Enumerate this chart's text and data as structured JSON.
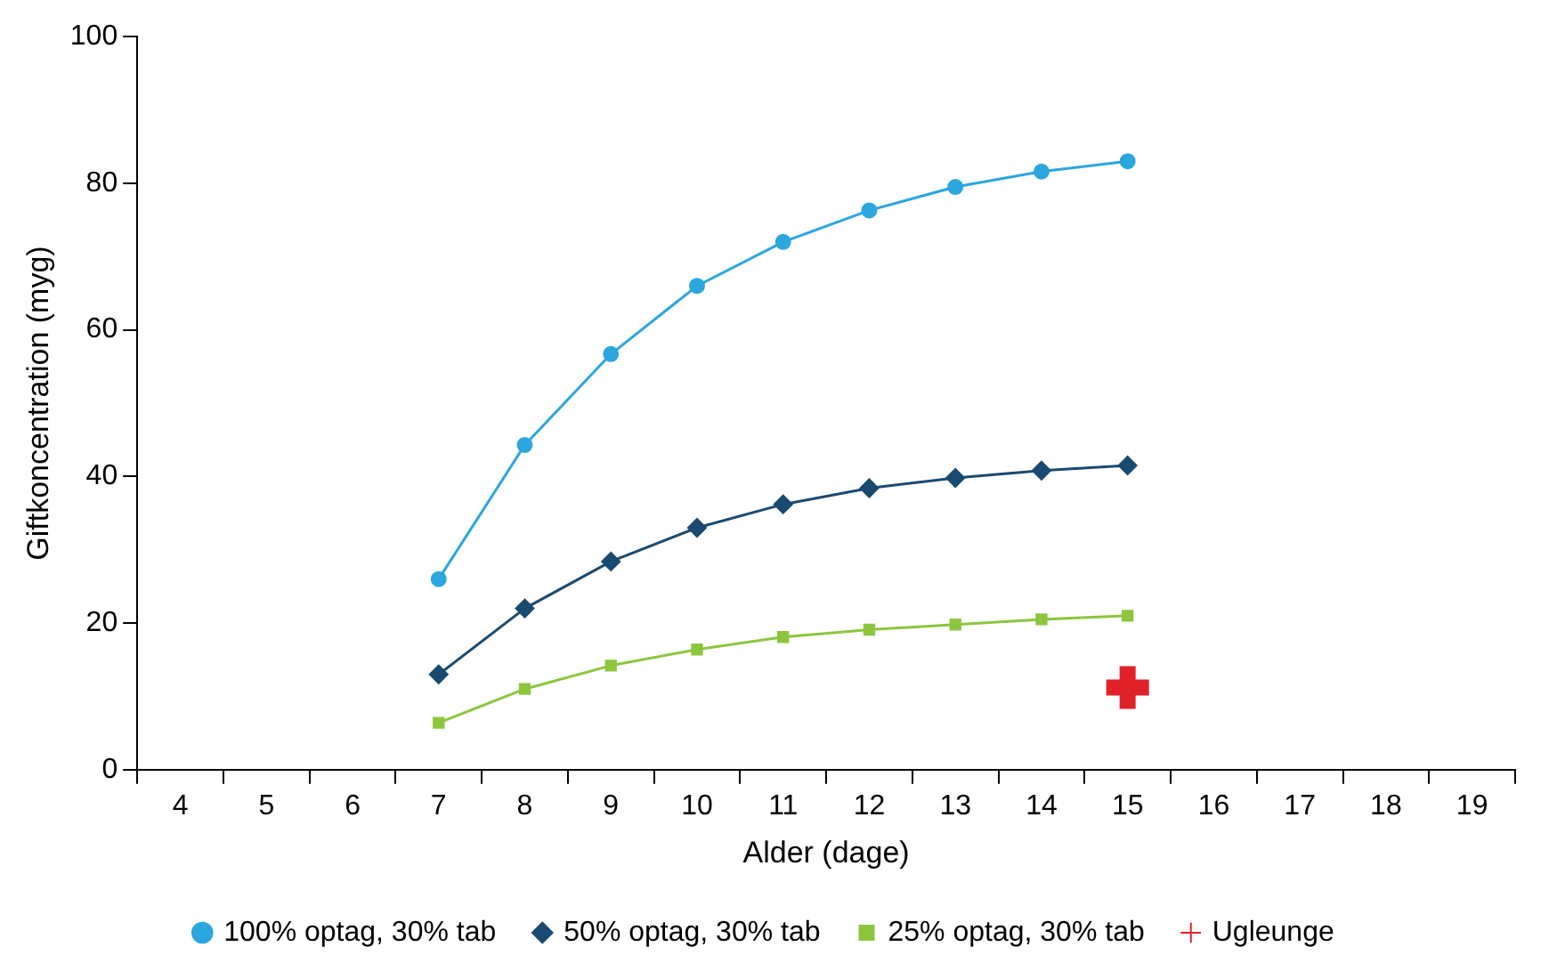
{
  "chart_data": {
    "type": "line",
    "xlabel": "Alder (dage)",
    "ylabel": "Giftkoncentration (myg)",
    "categories": [
      "4",
      "5",
      "6",
      "7",
      "8",
      "9",
      "10",
      "11",
      "12",
      "13",
      "14",
      "15",
      "16",
      "17",
      "18",
      "19"
    ],
    "ylim": [
      0,
      100
    ],
    "yticks": [
      0,
      20,
      40,
      60,
      80,
      100
    ],
    "grid": false,
    "legend": "bottom",
    "line_style": "solid",
    "series": [
      {
        "name": "100% optag, 30% tab",
        "color": "#2ba6de",
        "marker": "circle",
        "values": [
          null,
          null,
          null,
          26,
          44.3,
          56.7,
          66,
          72,
          76.3,
          79.5,
          81.6,
          83,
          null,
          null,
          null,
          null
        ]
      },
      {
        "name": "50% optag, 30% tab",
        "color": "#1a4a70",
        "marker": "diamond",
        "values": [
          null,
          null,
          null,
          13,
          22,
          28.4,
          33,
          36.2,
          38.4,
          39.8,
          40.8,
          41.5,
          null,
          null,
          null,
          null
        ]
      },
      {
        "name": "25% optag, 30% tab",
        "color": "#8cc63f",
        "marker": "square",
        "values": [
          null,
          null,
          null,
          6.4,
          11,
          14.2,
          16.4,
          18.1,
          19.1,
          19.8,
          20.5,
          21,
          null,
          null,
          null,
          null
        ]
      },
      {
        "name": "Ugleunge",
        "type": "scatter",
        "color": "#e02228",
        "marker": "cross",
        "values": [
          null,
          null,
          null,
          null,
          null,
          null,
          null,
          null,
          null,
          null,
          null,
          11.2,
          null,
          null,
          null,
          null
        ]
      }
    ]
  }
}
